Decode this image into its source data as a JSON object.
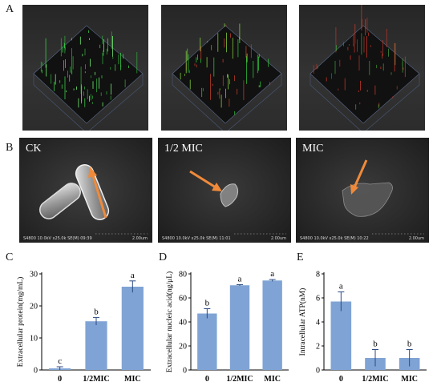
{
  "figure": {
    "panels": {
      "A": "A",
      "B": "B",
      "C": "C",
      "D": "D",
      "E": "E"
    },
    "sem_images": [
      {
        "label": "CK",
        "info": "S4800 10.0kV x25.0k SE(M) 09:39",
        "scale": "2.00um"
      },
      {
        "label": "1/2 MIC",
        "info": "S4800 10.0kV x25.0k SE(M) 11:01",
        "scale": "2.00um"
      },
      {
        "label": "MIC",
        "info": "S4800 10.0kV x25.0k SE(M) 10:22",
        "scale": "2.00um"
      }
    ],
    "arrow_color": "#F08A3A"
  },
  "chart_data": [
    {
      "type": "bar",
      "categories": [
        "0",
        "1/2MIC",
        "MIC"
      ],
      "values": [
        0.5,
        15.2,
        26.0
      ],
      "errors": [
        0.5,
        1.2,
        1.8
      ],
      "letters": [
        "c",
        "b",
        "a"
      ],
      "ylabel": "Extracellular protein(mg/mL)",
      "ylim": [
        0,
        30
      ],
      "yticks": [
        "0",
        "10",
        "20",
        "30"
      ],
      "bar_color": "#7FA3D4"
    },
    {
      "type": "bar",
      "categories": [
        "0",
        "1/2MIC",
        "MIC"
      ],
      "values": [
        47,
        70.5,
        74.5
      ],
      "errors": [
        4,
        0.5,
        0.8
      ],
      "letters": [
        "b",
        "a",
        "a"
      ],
      "ylabel": "Extracellular nucleic acid(ng/μL)",
      "ylim": [
        0,
        80
      ],
      "yticks": [
        "0",
        "20",
        "40",
        "60",
        "80"
      ],
      "bar_color": "#7FA3D4"
    },
    {
      "type": "bar",
      "categories": [
        "0",
        "1/2MIC",
        "MIC"
      ],
      "values": [
        5.7,
        1.0,
        1.0
      ],
      "errors": [
        0.8,
        0.7,
        0.7
      ],
      "letters": [
        "a",
        "b",
        "b"
      ],
      "ylabel": "Intracellular ATP(nM)",
      "ylim": [
        0,
        8
      ],
      "yticks": [
        "0",
        "2",
        "4",
        "6",
        "8"
      ],
      "bar_color": "#7FA3D4"
    }
  ]
}
